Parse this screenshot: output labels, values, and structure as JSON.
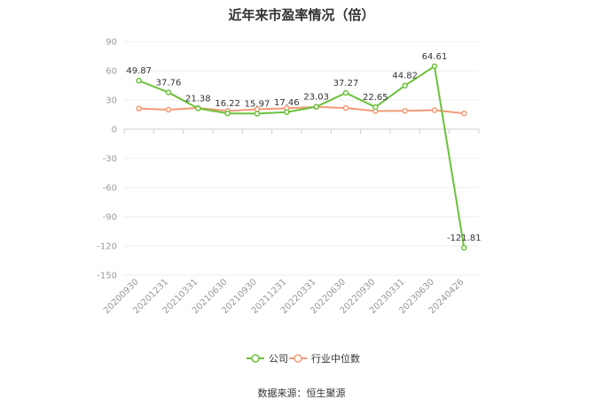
{
  "title": "近年来市盈率情况（倍）",
  "source": "数据来源：恒生聚源",
  "chart_data": {
    "type": "line",
    "title": "近年来市盈率情况（倍）",
    "categories": [
      "20200930",
      "20201231",
      "20210331",
      "20210630",
      "20210930",
      "20211231",
      "20220331",
      "20220630",
      "20220930",
      "20230331",
      "20230630",
      "20240426"
    ],
    "series": [
      {
        "name": "公司",
        "color": "#6cc13b",
        "values": [
          49.87,
          37.76,
          21.38,
          16.22,
          15.97,
          17.46,
          23.03,
          37.27,
          22.65,
          44.82,
          64.61,
          -121.81
        ],
        "labels": [
          "49.87",
          "37.76",
          "21.38",
          "16.22",
          "15.97",
          "17.46",
          "23.03",
          "37.27",
          "22.65",
          "44.82",
          "64.61",
          "-121.81"
        ]
      },
      {
        "name": "行业中位数",
        "color": "#f29a76",
        "values": [
          21.2,
          20.0,
          21.8,
          18.8,
          20.5,
          21.5,
          22.8,
          21.8,
          18.6,
          18.9,
          19.5,
          16.2
        ]
      }
    ],
    "yticks": [
      "90",
      "60",
      "30",
      "0",
      "-30",
      "-60",
      "-90",
      "-120",
      "-150"
    ],
    "ylim": [
      -150,
      90
    ],
    "grid": true,
    "legend": "bottom-center"
  }
}
